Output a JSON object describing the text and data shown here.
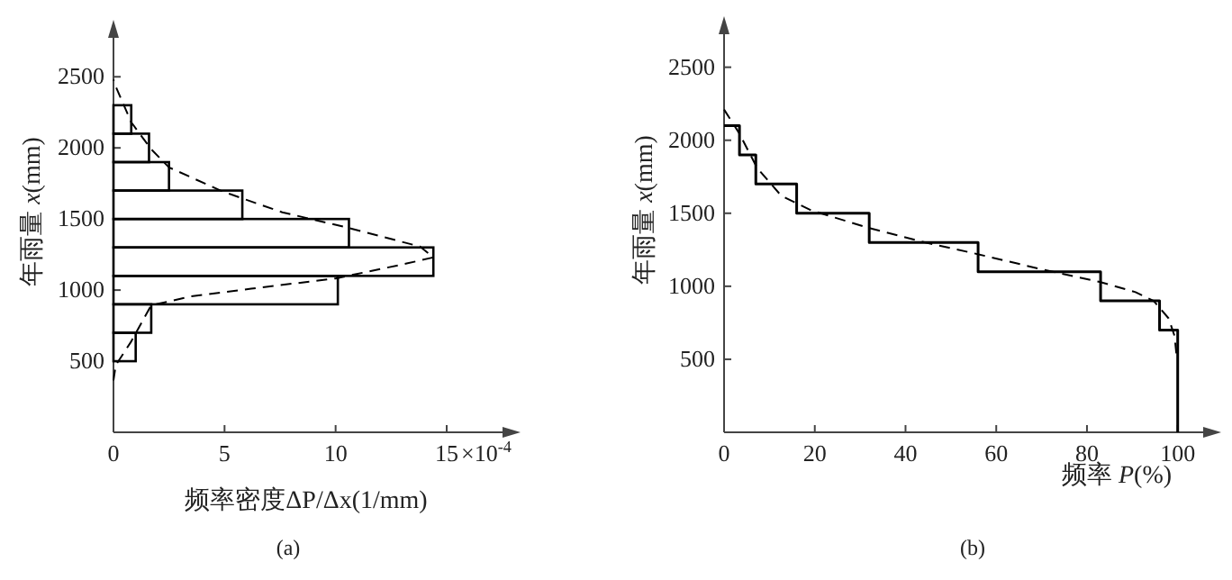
{
  "chart_data": [
    {
      "type": "histogram",
      "orientation": "horizontal",
      "color": "#000000",
      "grid": false,
      "bins": [
        500,
        700,
        900,
        1100,
        1300,
        1500,
        1700,
        1900,
        2100,
        2300
      ],
      "values": [
        1.0,
        1.7,
        10.1,
        14.4,
        10.6,
        5.8,
        2.5,
        1.6,
        0.8
      ],
      "series": [
        {
          "type": "line",
          "line_style": "dashed",
          "color": "#000000",
          "x": [
            365,
            471,
            639,
            893,
            956,
            1010,
            1082,
            1187,
            1230,
            1306,
            1441,
            1547,
            1694,
            1863,
            1990,
            2180,
            2433,
            2480
          ],
          "values": [
            0,
            0.1,
            0.8,
            1.7,
            3.5,
            6.2,
            10.0,
            13.2,
            14.4,
            13.8,
            10.5,
            7.6,
            4.9,
            2.5,
            1.7,
            0.8,
            0.1,
            0
          ]
        }
      ],
      "xlim": [
        0,
        18
      ],
      "ylim": [
        0,
        2850
      ],
      "xticks": [
        0,
        5,
        10,
        15
      ],
      "yticks": [
        500,
        1000,
        1500,
        2000,
        2500
      ],
      "xlabel": "频率密度ΔP/Δx(1/mm)",
      "ylabel": "年雨量 *x*(mm)",
      "annotations": [
        "×10$^{-4}$",
        "(a)"
      ]
    },
    {
      "type": "step",
      "grid": false,
      "series": [
        {
          "color": "#000000",
          "line_style": "solid",
          "x": [
            0,
            3.4,
            7,
            16,
            32,
            56,
            83,
            96,
            100
          ],
          "values": [
            2100,
            1900,
            1700,
            1500,
            1300,
            1100,
            900,
            700,
            0
          ]
        },
        {
          "type": "line",
          "line_style": "dashed",
          "color": "#000000",
          "x": [
            0,
            3.3,
            7.3,
            12.6,
            19.2,
            31.8,
            44.4,
            55.9,
            69.5,
            82.8,
            90.7,
            94.7,
            98,
            99.3,
            99.7
          ],
          "values": [
            2210,
            2050,
            1810,
            1620,
            1520,
            1400,
            1300,
            1220,
            1120,
            1030,
            960,
            900,
            780,
            660,
            540
          ]
        }
      ],
      "xlim": [
        0,
        108
      ],
      "ylim": [
        0,
        2800
      ],
      "xticks": [
        0,
        20,
        40,
        60,
        80,
        100
      ],
      "yticks": [
        500,
        1000,
        1500,
        2000,
        2500
      ],
      "xlabel": "频率 *P*(%)",
      "ylabel": "年雨量 *x*(mm)",
      "annotations": [
        "(b)"
      ]
    }
  ]
}
